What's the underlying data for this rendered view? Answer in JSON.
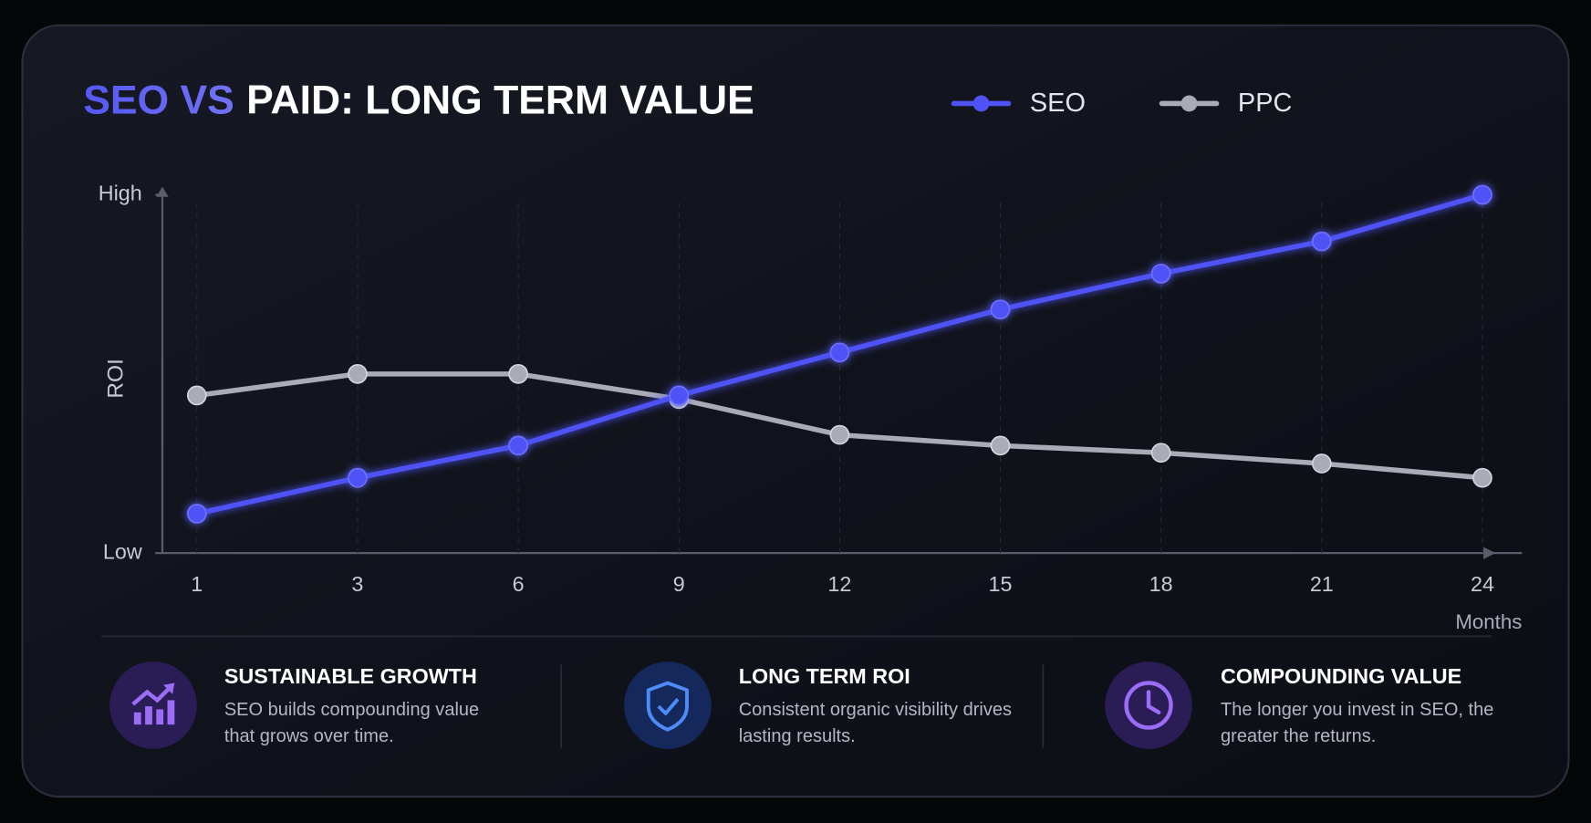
{
  "chart_data": {
    "type": "line",
    "title_accent": "SEO VS",
    "title": "PAID: LONG TERM VALUE",
    "y_label": "ROI",
    "x_label": "Months",
    "categories": [
      "1",
      "3",
      "6",
      "9",
      "12",
      "15",
      "18",
      "21",
      "24"
    ],
    "series": [
      {
        "name": "SEO",
        "color": "#4f52f5",
        "values": [
          11,
          21,
          30,
          44,
          56,
          68,
          78,
          87,
          100
        ]
      },
      {
        "name": "PPC",
        "color": "#a9abb6",
        "values": [
          44,
          50,
          50,
          43,
          33,
          30,
          28,
          25,
          21
        ]
      }
    ],
    "ylim": [
      0,
      100
    ],
    "yticks": [
      {
        "value": 0,
        "label": "Low"
      },
      {
        "value": 100,
        "label": "High"
      }
    ],
    "grid": true
  },
  "features": [
    {
      "title": "SUSTAINABLE GROWTH",
      "text": "SEO builds compounding value that grows over time."
    },
    {
      "title": "LONG TERM ROI",
      "text": "Consistent organic visibility drives lasting results."
    },
    {
      "title": "COMPOUNDING VALUE",
      "text": "The longer you invest in SEO, the greater the returns."
    }
  ]
}
